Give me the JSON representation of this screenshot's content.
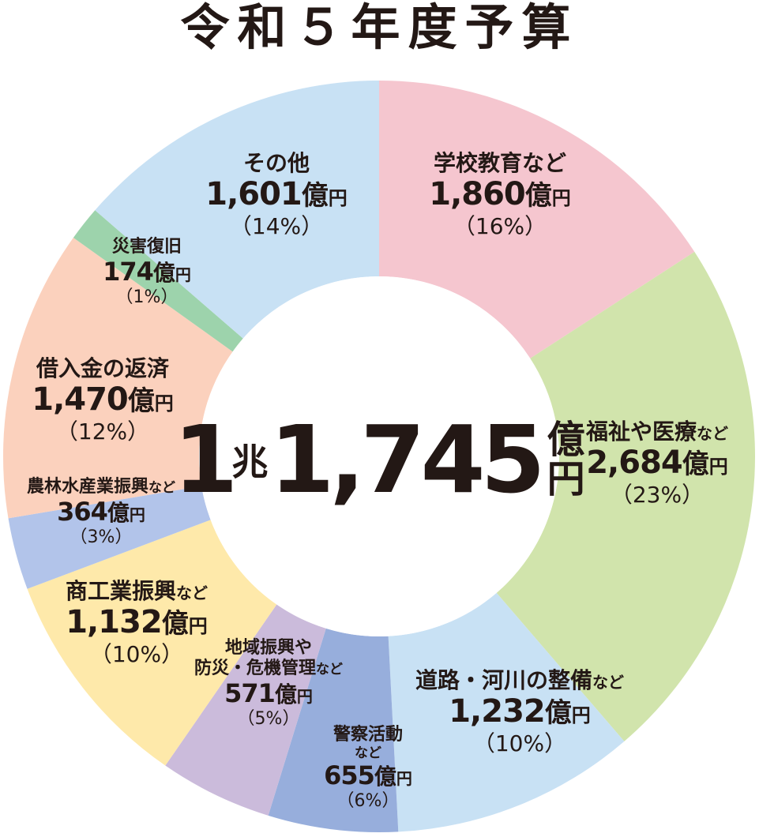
{
  "title": "令和５年度予算",
  "total": {
    "chou": "1",
    "chou_unit": "兆",
    "oku": "1,745",
    "unit_top": "億",
    "unit_bottom": "円"
  },
  "colors": {
    "学校教育など": "#f5c6cf",
    "福祉や医療など": "#d1e4ac",
    "道路・河川の整備など": "#c8e1f4",
    "警察活動など": "#97aedc",
    "地域振興や防災・危機管理など": "#cbbbdb",
    "商工業振興など": "#fee9aa",
    "農林水産業振興など": "#b2c4ea",
    "借入金の返済": "#fbd1bd",
    "災害復旧": "#9dd3ac",
    "その他": "#c8e1f4"
  },
  "chart_data": {
    "type": "pie",
    "title": "令和５年度予算",
    "categories": [
      "学校教育など",
      "福祉や医療など",
      "道路・河川の整備など",
      "警察活動など",
      "地域振興や防災・危機管理など",
      "商工業振興など",
      "農林水産業振興など",
      "借入金の返済",
      "災害復旧",
      "その他"
    ],
    "values": [
      1860,
      2684,
      1232,
      655,
      571,
      1132,
      364,
      1470,
      174,
      1601
    ],
    "percents": [
      "16%",
      "23%",
      "10%",
      "6%",
      "5%",
      "10%",
      "3%",
      "12%",
      "1%",
      "14%"
    ],
    "total": "1兆1,745億円"
  },
  "labels": [
    {
      "name": "学校教育など",
      "amount": "1,860",
      "unit": "億",
      "yen": "円",
      "pct": "（16%）"
    },
    {
      "name": "福祉や医療",
      "suffix": "など",
      "amount": "2,684",
      "unit": "億",
      "yen": "円",
      "pct": "（23%）"
    },
    {
      "name": "道路・河川の整備",
      "suffix": "など",
      "amount": "1,232",
      "unit": "億",
      "yen": "円",
      "pct": "（10%）"
    },
    {
      "name": "警察活動",
      "name2": "など",
      "amount": "655",
      "unit": "億",
      "yen": "円",
      "pct": "（6%）"
    },
    {
      "name": "地域振興や",
      "name2": "防災・危機管理",
      "suffix": "など",
      "amount": "571",
      "unit": "億",
      "yen": "円",
      "pct": "（5%）"
    },
    {
      "name": "商工業振興",
      "suffix": "など",
      "amount": "1,132",
      "unit": "億",
      "yen": "円",
      "pct": "（10%）"
    },
    {
      "name": "農林水産業振興",
      "suffix": "など",
      "amount": "364",
      "unit": "億",
      "yen": "円",
      "pct": "（3%）"
    },
    {
      "name": "借入金の返済",
      "amount": "1,470",
      "unit": "億",
      "yen": "円",
      "pct": "（12%）"
    },
    {
      "name": "災害復旧",
      "amount": "174",
      "unit": "億",
      "yen": "円",
      "pct": "（1%）"
    },
    {
      "name": "その他",
      "amount": "1,601",
      "unit": "億",
      "yen": "円",
      "pct": "（14%）"
    }
  ]
}
